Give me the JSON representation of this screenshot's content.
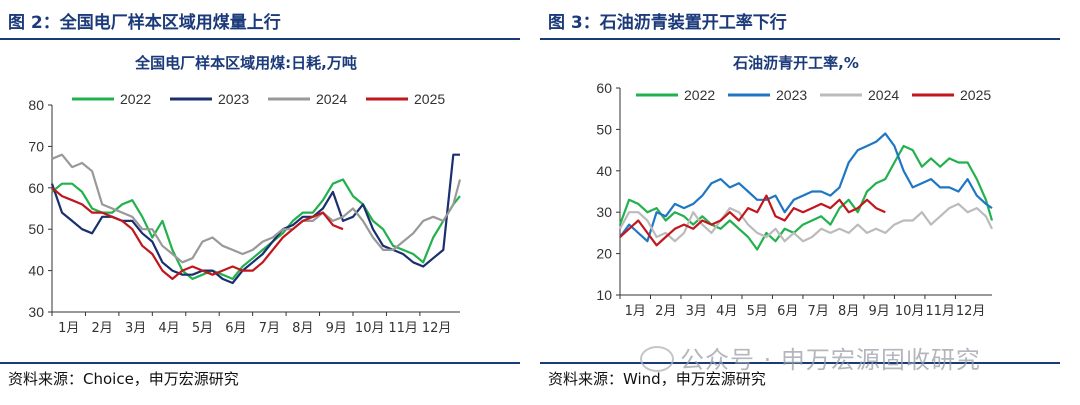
{
  "panels": [
    {
      "fig_title": "图 2：全国电厂样本区域用煤量上行",
      "source": "资料来源：Choice，申万宏源研究",
      "chart_data": {
        "type": "line",
        "title": "全国电厂样本区域用煤:日耗,万吨",
        "xlabel": "",
        "ylabel": "",
        "ylim": [
          30,
          80
        ],
        "yticks": [
          30,
          40,
          50,
          60,
          70,
          80
        ],
        "categories": [
          "1月",
          "2月",
          "3月",
          "4月",
          "5月",
          "6月",
          "7月",
          "8月",
          "9月",
          "10月",
          "11月",
          "12月"
        ],
        "xlim": [
          0,
          12.2
        ],
        "grid": false,
        "legend_position": "top",
        "series": [
          {
            "name": "2022",
            "color": "#22b14c",
            "x": [
              0,
              0.3,
              0.6,
              0.9,
              1.2,
              1.5,
              1.8,
              2.1,
              2.4,
              2.7,
              3.0,
              3.3,
              3.6,
              3.9,
              4.2,
              4.5,
              4.8,
              5.1,
              5.4,
              5.7,
              6.0,
              6.3,
              6.6,
              6.9,
              7.2,
              7.5,
              7.8,
              8.1,
              8.4,
              8.7,
              9.0,
              9.3,
              9.6,
              9.9,
              10.2,
              10.5,
              10.8,
              11.1,
              11.4,
              11.7,
              12.0,
              12.2
            ],
            "y": [
              59,
              61,
              61,
              59,
              55,
              54,
              54,
              56,
              57,
              53,
              48,
              52,
              45,
              40,
              38,
              39,
              40,
              39,
              38,
              41,
              43,
              45,
              47,
              49,
              52,
              54,
              54,
              57,
              61,
              62,
              58,
              56,
              52,
              50,
              46,
              45,
              44,
              42,
              48,
              52,
              56,
              58
            ]
          },
          {
            "name": "2023",
            "color": "#1a2f6e",
            "x": [
              0,
              0.3,
              0.6,
              0.9,
              1.2,
              1.5,
              1.8,
              2.1,
              2.4,
              2.7,
              3.0,
              3.3,
              3.6,
              3.9,
              4.2,
              4.5,
              4.8,
              5.1,
              5.4,
              5.7,
              6.0,
              6.3,
              6.6,
              6.9,
              7.2,
              7.5,
              7.8,
              8.1,
              8.4,
              8.7,
              9.0,
              9.3,
              9.6,
              9.9,
              10.2,
              10.5,
              10.8,
              11.1,
              11.4,
              11.7,
              12.0,
              12.2
            ],
            "y": [
              61,
              54,
              52,
              50,
              49,
              53,
              53,
              52,
              52,
              49,
              47,
              42,
              40,
              39,
              39,
              40,
              40,
              38,
              37,
              40,
              42,
              44,
              47,
              50,
              51,
              53,
              53,
              55,
              59,
              52,
              53,
              56,
              50,
              46,
              45,
              44,
              42,
              41,
              43,
              45,
              68,
              68
            ]
          },
          {
            "name": "2024",
            "color": "#999999",
            "x": [
              0,
              0.3,
              0.6,
              0.9,
              1.2,
              1.5,
              1.8,
              2.1,
              2.4,
              2.7,
              3.0,
              3.3,
              3.6,
              3.9,
              4.2,
              4.5,
              4.8,
              5.1,
              5.4,
              5.7,
              6.0,
              6.3,
              6.6,
              6.9,
              7.2,
              7.5,
              7.8,
              8.1,
              8.4,
              8.7,
              9.0,
              9.3,
              9.6,
              9.9,
              10.2,
              10.5,
              10.8,
              11.1,
              11.4,
              11.7,
              12.0,
              12.2
            ],
            "y": [
              67,
              68,
              65,
              66,
              64,
              56,
              55,
              54,
              53,
              50,
              50,
              46,
              44,
              42,
              43,
              47,
              48,
              46,
              45,
              44,
              45,
              47,
              48,
              50,
              50,
              52,
              52,
              54,
              52,
              53,
              55,
              52,
              48,
              45,
              45,
              47,
              49,
              52,
              53,
              52,
              56,
              62
            ]
          },
          {
            "name": "2025",
            "color": "#c0161c",
            "x": [
              0,
              0.3,
              0.6,
              0.9,
              1.2,
              1.5,
              1.8,
              2.1,
              2.4,
              2.7,
              3.0,
              3.3,
              3.6,
              3.9,
              4.2,
              4.5,
              4.8,
              5.1,
              5.4,
              5.7,
              6.0,
              6.3,
              6.6,
              6.9,
              7.2,
              7.5,
              7.8,
              8.1,
              8.4,
              8.7
            ],
            "y": [
              60,
              58,
              57,
              56,
              54,
              54,
              53,
              52,
              50,
              46,
              44,
              40,
              38,
              40,
              41,
              40,
              39,
              40,
              41,
              40,
              40,
              42,
              45,
              48,
              50,
              52,
              53,
              54,
              51,
              50
            ]
          }
        ]
      }
    },
    {
      "fig_title": "图 3：石油沥青装置开工率下行",
      "source": "资料来源：Wind，申万宏源研究",
      "chart_data": {
        "type": "line",
        "title": "石油沥青开工率,%",
        "xlabel": "",
        "ylabel": "",
        "ylim": [
          10,
          60
        ],
        "yticks": [
          10,
          20,
          30,
          40,
          50,
          60
        ],
        "categories": [
          "1月",
          "2月",
          "3月",
          "4月",
          "5月",
          "6月",
          "7月",
          "8月",
          "9月",
          "10月",
          "11月",
          "12月"
        ],
        "xlim": [
          0,
          12.2
        ],
        "grid": false,
        "legend_position": "top",
        "series": [
          {
            "name": "2022",
            "color": "#22b14c",
            "x": [
              0,
              0.3,
              0.6,
              0.9,
              1.2,
              1.5,
              1.8,
              2.1,
              2.4,
              2.7,
              3.0,
              3.3,
              3.6,
              3.9,
              4.2,
              4.5,
              4.8,
              5.1,
              5.4,
              5.7,
              6.0,
              6.3,
              6.6,
              6.9,
              7.2,
              7.5,
              7.8,
              8.1,
              8.4,
              8.7,
              9.0,
              9.3,
              9.6,
              9.9,
              10.2,
              10.5,
              10.8,
              11.1,
              11.4,
              11.7,
              12.0,
              12.2
            ],
            "y": [
              27,
              33,
              32,
              30,
              31,
              28,
              30,
              29,
              27,
              29,
              27,
              26,
              28,
              26,
              24,
              21,
              25,
              23,
              26,
              25,
              27,
              28,
              29,
              27,
              31,
              33,
              30,
              35,
              37,
              38,
              42,
              46,
              45,
              41,
              43,
              41,
              43,
              42,
              42,
              38,
              33,
              28
            ]
          },
          {
            "name": "2023",
            "color": "#1f77c4",
            "x": [
              0,
              0.3,
              0.6,
              0.9,
              1.2,
              1.5,
              1.8,
              2.1,
              2.4,
              2.7,
              3.0,
              3.3,
              3.6,
              3.9,
              4.2,
              4.5,
              4.8,
              5.1,
              5.4,
              5.7,
              6.0,
              6.3,
              6.6,
              6.9,
              7.2,
              7.5,
              7.8,
              8.1,
              8.4,
              8.7,
              9.0,
              9.3,
              9.6,
              9.9,
              10.2,
              10.5,
              10.8,
              11.1,
              11.4,
              11.7,
              12.0,
              12.2
            ],
            "y": [
              24,
              27,
              25,
              23,
              30,
              29,
              32,
              31,
              32,
              34,
              37,
              38,
              36,
              37,
              35,
              33,
              33,
              34,
              30,
              33,
              34,
              35,
              35,
              34,
              36,
              42,
              45,
              46,
              47,
              49,
              46,
              40,
              36,
              37,
              38,
              36,
              36,
              35,
              38,
              34,
              32,
              31
            ]
          },
          {
            "name": "2024",
            "color": "#bbbbbb",
            "x": [
              0,
              0.3,
              0.6,
              0.9,
              1.2,
              1.5,
              1.8,
              2.1,
              2.4,
              2.7,
              3.0,
              3.3,
              3.6,
              3.9,
              4.2,
              4.5,
              4.8,
              5.1,
              5.4,
              5.7,
              6.0,
              6.3,
              6.6,
              6.9,
              7.2,
              7.5,
              7.8,
              8.1,
              8.4,
              8.7,
              9.0,
              9.3,
              9.6,
              9.9,
              10.2,
              10.5,
              10.8,
              11.1,
              11.4,
              11.7,
              12.0,
              12.2
            ],
            "y": [
              26,
              30,
              30,
              28,
              24,
              25,
              23,
              25,
              30,
              27,
              25,
              28,
              31,
              30,
              27,
              25,
              24,
              26,
              23,
              25,
              23,
              24,
              26,
              25,
              26,
              25,
              27,
              25,
              26,
              25,
              27,
              28,
              28,
              30,
              27,
              29,
              31,
              32,
              30,
              31,
              29,
              26
            ]
          },
          {
            "name": "2025",
            "color": "#c0161c",
            "x": [
              0,
              0.3,
              0.6,
              0.9,
              1.2,
              1.5,
              1.8,
              2.1,
              2.4,
              2.7,
              3.0,
              3.3,
              3.6,
              3.9,
              4.2,
              4.5,
              4.8,
              5.1,
              5.4,
              5.7,
              6.0,
              6.3,
              6.6,
              6.9,
              7.2,
              7.5,
              7.8,
              8.1,
              8.4,
              8.7
            ],
            "y": [
              24,
              26,
              28,
              25,
              22,
              24,
              26,
              27,
              26,
              28,
              27,
              28,
              30,
              28,
              31,
              30,
              34,
              29,
              28,
              31,
              30,
              31,
              32,
              31,
              33,
              30,
              31,
              33,
              31,
              30
            ]
          }
        ]
      }
    }
  ],
  "watermark": "公众号 · 申万宏源固收研究"
}
